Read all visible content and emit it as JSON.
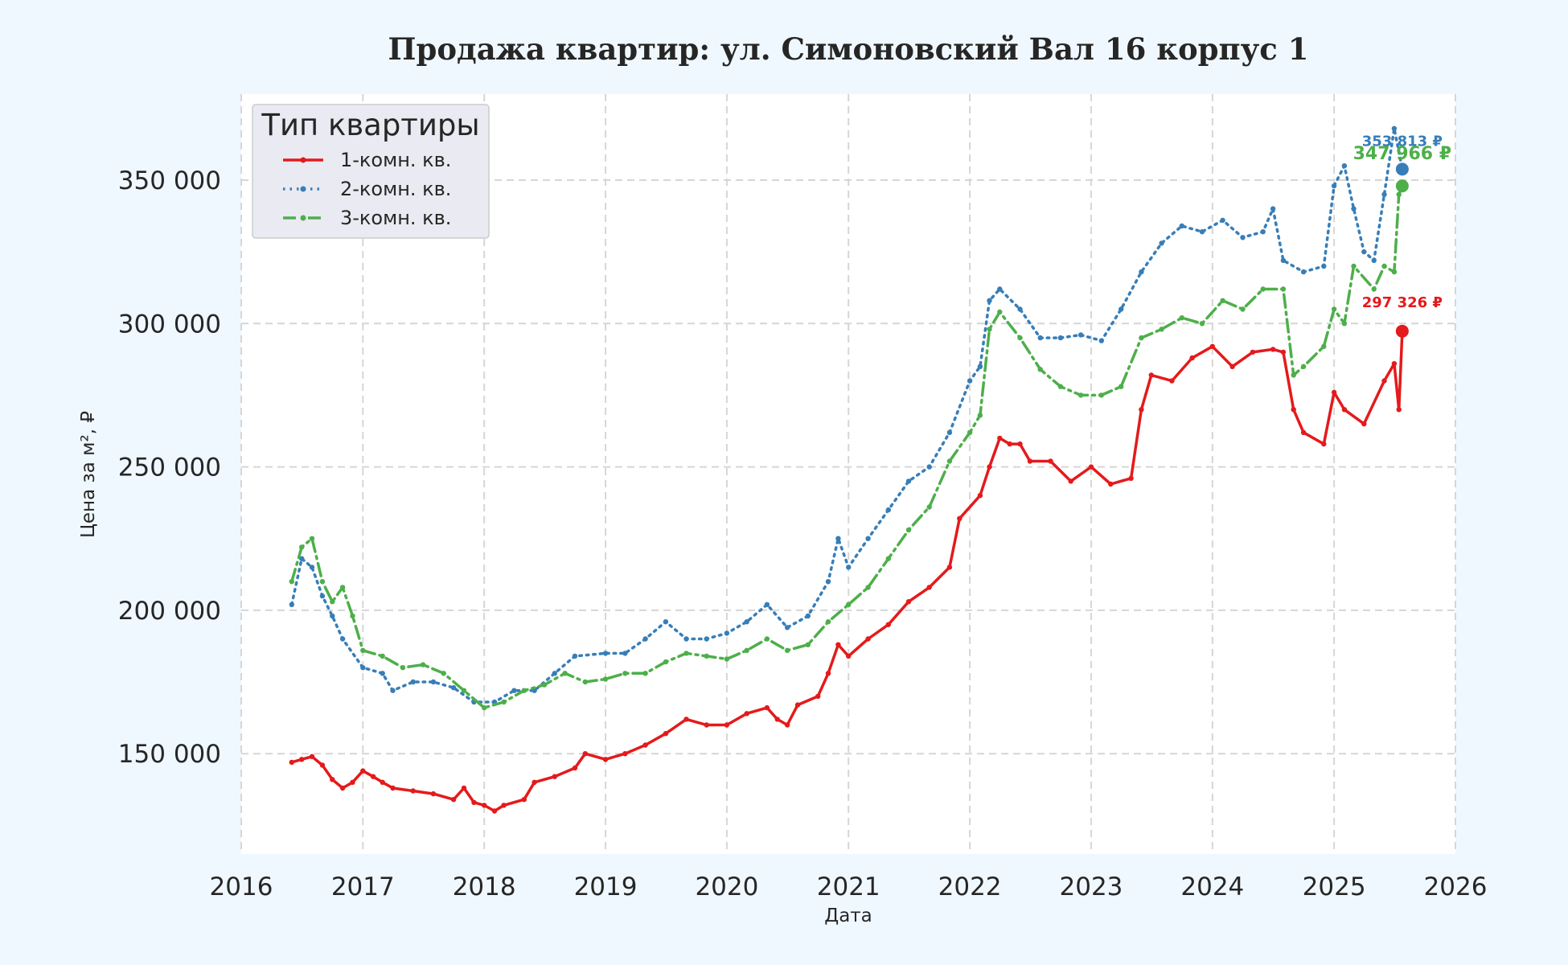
{
  "chart_data": {
    "type": "line",
    "title": "Продажа квартир: ул. Симоновский Вал 16 корпус 1",
    "xlabel": "Дата",
    "ylabel": "Цена за м², ₽",
    "xlim": [
      "2016-01-01",
      "2026-01-01"
    ],
    "ylim": [
      115000,
      380000
    ],
    "x_ticks": [
      "2016",
      "2017",
      "2018",
      "2019",
      "2020",
      "2021",
      "2022",
      "2023",
      "2024",
      "2025",
      "2026"
    ],
    "y_ticks": [
      "150 000",
      "200 000",
      "250 000",
      "300 000",
      "350 000"
    ],
    "y_tick_values": [
      150000,
      200000,
      250000,
      300000,
      350000
    ],
    "grid": true,
    "legend": {
      "title": "Тип квартиры",
      "position": "top-left"
    },
    "series": [
      {
        "name": "1-комн. кв.",
        "color": "#e41a1c",
        "style": "solid",
        "end_label": "297 326 ₽",
        "points": [
          [
            "2016-06-01",
            147000
          ],
          [
            "2016-07-01",
            148000
          ],
          [
            "2016-08-01",
            149000
          ],
          [
            "2016-09-01",
            146000
          ],
          [
            "2016-10-01",
            141000
          ],
          [
            "2016-11-01",
            138000
          ],
          [
            "2016-12-01",
            140000
          ],
          [
            "2017-01-01",
            144000
          ],
          [
            "2017-02-01",
            142000
          ],
          [
            "2017-03-01",
            140000
          ],
          [
            "2017-04-01",
            138000
          ],
          [
            "2017-06-01",
            137000
          ],
          [
            "2017-08-01",
            136000
          ],
          [
            "2017-10-01",
            134000
          ],
          [
            "2017-11-01",
            138000
          ],
          [
            "2017-12-01",
            133000
          ],
          [
            "2018-01-01",
            132000
          ],
          [
            "2018-02-01",
            130000
          ],
          [
            "2018-03-01",
            132000
          ],
          [
            "2018-05-01",
            134000
          ],
          [
            "2018-06-01",
            140000
          ],
          [
            "2018-08-01",
            142000
          ],
          [
            "2018-10-01",
            145000
          ],
          [
            "2018-11-01",
            150000
          ],
          [
            "2019-01-01",
            148000
          ],
          [
            "2019-03-01",
            150000
          ],
          [
            "2019-05-01",
            153000
          ],
          [
            "2019-07-01",
            157000
          ],
          [
            "2019-09-01",
            162000
          ],
          [
            "2019-11-01",
            160000
          ],
          [
            "2020-01-01",
            160000
          ],
          [
            "2020-03-01",
            164000
          ],
          [
            "2020-05-01",
            166000
          ],
          [
            "2020-06-01",
            162000
          ],
          [
            "2020-07-01",
            160000
          ],
          [
            "2020-08-01",
            167000
          ],
          [
            "2020-10-01",
            170000
          ],
          [
            "2020-11-01",
            178000
          ],
          [
            "2020-12-01",
            188000
          ],
          [
            "2021-01-01",
            184000
          ],
          [
            "2021-03-01",
            190000
          ],
          [
            "2021-05-01",
            195000
          ],
          [
            "2021-07-01",
            203000
          ],
          [
            "2021-09-01",
            208000
          ],
          [
            "2021-11-01",
            215000
          ],
          [
            "2021-12-01",
            232000
          ],
          [
            "2022-02-01",
            240000
          ],
          [
            "2022-03-01",
            250000
          ],
          [
            "2022-04-01",
            260000
          ],
          [
            "2022-05-01",
            258000
          ],
          [
            "2022-06-01",
            258000
          ],
          [
            "2022-07-01",
            252000
          ],
          [
            "2022-09-01",
            252000
          ],
          [
            "2022-11-01",
            245000
          ],
          [
            "2023-01-01",
            250000
          ],
          [
            "2023-03-01",
            244000
          ],
          [
            "2023-05-01",
            246000
          ],
          [
            "2023-06-01",
            270000
          ],
          [
            "2023-07-01",
            282000
          ],
          [
            "2023-09-01",
            280000
          ],
          [
            "2023-11-01",
            288000
          ],
          [
            "2024-01-01",
            292000
          ],
          [
            "2024-03-01",
            285000
          ],
          [
            "2024-05-01",
            290000
          ],
          [
            "2024-07-01",
            291000
          ],
          [
            "2024-08-01",
            290000
          ],
          [
            "2024-09-01",
            270000
          ],
          [
            "2024-10-01",
            262000
          ],
          [
            "2024-12-01",
            258000
          ],
          [
            "2025-01-01",
            276000
          ],
          [
            "2025-02-01",
            270000
          ],
          [
            "2025-04-01",
            265000
          ],
          [
            "2025-06-01",
            280000
          ],
          [
            "2025-07-01",
            286000
          ],
          [
            "2025-07-15",
            270000
          ],
          [
            "2025-07-25",
            297326
          ]
        ]
      },
      {
        "name": "2-комн. кв.",
        "color": "#377eb8",
        "style": "dotted",
        "end_label": "353 813 ₽",
        "points": [
          [
            "2016-06-01",
            202000
          ],
          [
            "2016-07-01",
            218000
          ],
          [
            "2016-08-01",
            215000
          ],
          [
            "2016-09-01",
            205000
          ],
          [
            "2016-10-01",
            198000
          ],
          [
            "2016-11-01",
            190000
          ],
          [
            "2017-01-01",
            180000
          ],
          [
            "2017-03-01",
            178000
          ],
          [
            "2017-04-01",
            172000
          ],
          [
            "2017-06-01",
            175000
          ],
          [
            "2017-08-01",
            175000
          ],
          [
            "2017-10-01",
            173000
          ],
          [
            "2017-12-01",
            168000
          ],
          [
            "2018-02-01",
            168000
          ],
          [
            "2018-04-01",
            172000
          ],
          [
            "2018-06-01",
            172000
          ],
          [
            "2018-08-01",
            178000
          ],
          [
            "2018-10-01",
            184000
          ],
          [
            "2019-01-01",
            185000
          ],
          [
            "2019-03-01",
            185000
          ],
          [
            "2019-05-01",
            190000
          ],
          [
            "2019-07-01",
            196000
          ],
          [
            "2019-09-01",
            190000
          ],
          [
            "2019-11-01",
            190000
          ],
          [
            "2020-01-01",
            192000
          ],
          [
            "2020-03-01",
            196000
          ],
          [
            "2020-05-01",
            202000
          ],
          [
            "2020-07-01",
            194000
          ],
          [
            "2020-09-01",
            198000
          ],
          [
            "2020-11-01",
            210000
          ],
          [
            "2020-12-01",
            225000
          ],
          [
            "2021-01-01",
            215000
          ],
          [
            "2021-03-01",
            225000
          ],
          [
            "2021-05-01",
            235000
          ],
          [
            "2021-07-01",
            245000
          ],
          [
            "2021-09-01",
            250000
          ],
          [
            "2021-11-01",
            262000
          ],
          [
            "2022-01-01",
            280000
          ],
          [
            "2022-02-01",
            285000
          ],
          [
            "2022-03-01",
            308000
          ],
          [
            "2022-04-01",
            312000
          ],
          [
            "2022-06-01",
            305000
          ],
          [
            "2022-08-01",
            295000
          ],
          [
            "2022-10-01",
            295000
          ],
          [
            "2022-12-01",
            296000
          ],
          [
            "2023-02-01",
            294000
          ],
          [
            "2023-04-01",
            305000
          ],
          [
            "2023-06-01",
            318000
          ],
          [
            "2023-08-01",
            328000
          ],
          [
            "2023-10-01",
            334000
          ],
          [
            "2023-12-01",
            332000
          ],
          [
            "2024-02-01",
            336000
          ],
          [
            "2024-04-01",
            330000
          ],
          [
            "2024-06-01",
            332000
          ],
          [
            "2024-07-01",
            340000
          ],
          [
            "2024-08-01",
            322000
          ],
          [
            "2024-10-01",
            318000
          ],
          [
            "2024-12-01",
            320000
          ],
          [
            "2025-01-01",
            348000
          ],
          [
            "2025-02-01",
            355000
          ],
          [
            "2025-03-01",
            340000
          ],
          [
            "2025-04-01",
            325000
          ],
          [
            "2025-05-01",
            322000
          ],
          [
            "2025-06-01",
            345000
          ],
          [
            "2025-07-01",
            368000
          ],
          [
            "2025-07-25",
            353813
          ]
        ]
      },
      {
        "name": "3-комн. кв.",
        "color": "#4daf4a",
        "style": "dashdot",
        "end_label": "347 966 ₽",
        "points": [
          [
            "2016-06-01",
            210000
          ],
          [
            "2016-07-01",
            222000
          ],
          [
            "2016-08-01",
            225000
          ],
          [
            "2016-09-01",
            210000
          ],
          [
            "2016-10-01",
            203000
          ],
          [
            "2016-11-01",
            208000
          ],
          [
            "2016-12-01",
            198000
          ],
          [
            "2017-01-01",
            186000
          ],
          [
            "2017-03-01",
            184000
          ],
          [
            "2017-05-01",
            180000
          ],
          [
            "2017-07-01",
            181000
          ],
          [
            "2017-09-01",
            178000
          ],
          [
            "2017-11-01",
            172000
          ],
          [
            "2018-01-01",
            166000
          ],
          [
            "2018-03-01",
            168000
          ],
          [
            "2018-05-01",
            172000
          ],
          [
            "2018-07-01",
            174000
          ],
          [
            "2018-09-01",
            178000
          ],
          [
            "2018-11-01",
            175000
          ],
          [
            "2019-01-01",
            176000
          ],
          [
            "2019-03-01",
            178000
          ],
          [
            "2019-05-01",
            178000
          ],
          [
            "2019-07-01",
            182000
          ],
          [
            "2019-09-01",
            185000
          ],
          [
            "2019-11-01",
            184000
          ],
          [
            "2020-01-01",
            183000
          ],
          [
            "2020-03-01",
            186000
          ],
          [
            "2020-05-01",
            190000
          ],
          [
            "2020-07-01",
            186000
          ],
          [
            "2020-09-01",
            188000
          ],
          [
            "2020-11-01",
            196000
          ],
          [
            "2021-01-01",
            202000
          ],
          [
            "2021-03-01",
            208000
          ],
          [
            "2021-05-01",
            218000
          ],
          [
            "2021-07-01",
            228000
          ],
          [
            "2021-09-01",
            236000
          ],
          [
            "2021-11-01",
            252000
          ],
          [
            "2022-01-01",
            262000
          ],
          [
            "2022-02-01",
            268000
          ],
          [
            "2022-03-01",
            298000
          ],
          [
            "2022-04-01",
            304000
          ],
          [
            "2022-06-01",
            295000
          ],
          [
            "2022-08-01",
            284000
          ],
          [
            "2022-10-01",
            278000
          ],
          [
            "2022-12-01",
            275000
          ],
          [
            "2023-02-01",
            275000
          ],
          [
            "2023-04-01",
            278000
          ],
          [
            "2023-06-01",
            295000
          ],
          [
            "2023-08-01",
            298000
          ],
          [
            "2023-10-01",
            302000
          ],
          [
            "2023-12-01",
            300000
          ],
          [
            "2024-02-01",
            308000
          ],
          [
            "2024-04-01",
            305000
          ],
          [
            "2024-06-01",
            312000
          ],
          [
            "2024-08-01",
            312000
          ],
          [
            "2024-09-01",
            282000
          ],
          [
            "2024-10-01",
            285000
          ],
          [
            "2024-12-01",
            292000
          ],
          [
            "2025-01-01",
            305000
          ],
          [
            "2025-02-01",
            300000
          ],
          [
            "2025-03-01",
            320000
          ],
          [
            "2025-05-01",
            312000
          ],
          [
            "2025-06-01",
            320000
          ],
          [
            "2025-07-01",
            318000
          ],
          [
            "2025-07-15",
            345000
          ],
          [
            "2025-07-25",
            347966
          ]
        ]
      }
    ]
  }
}
